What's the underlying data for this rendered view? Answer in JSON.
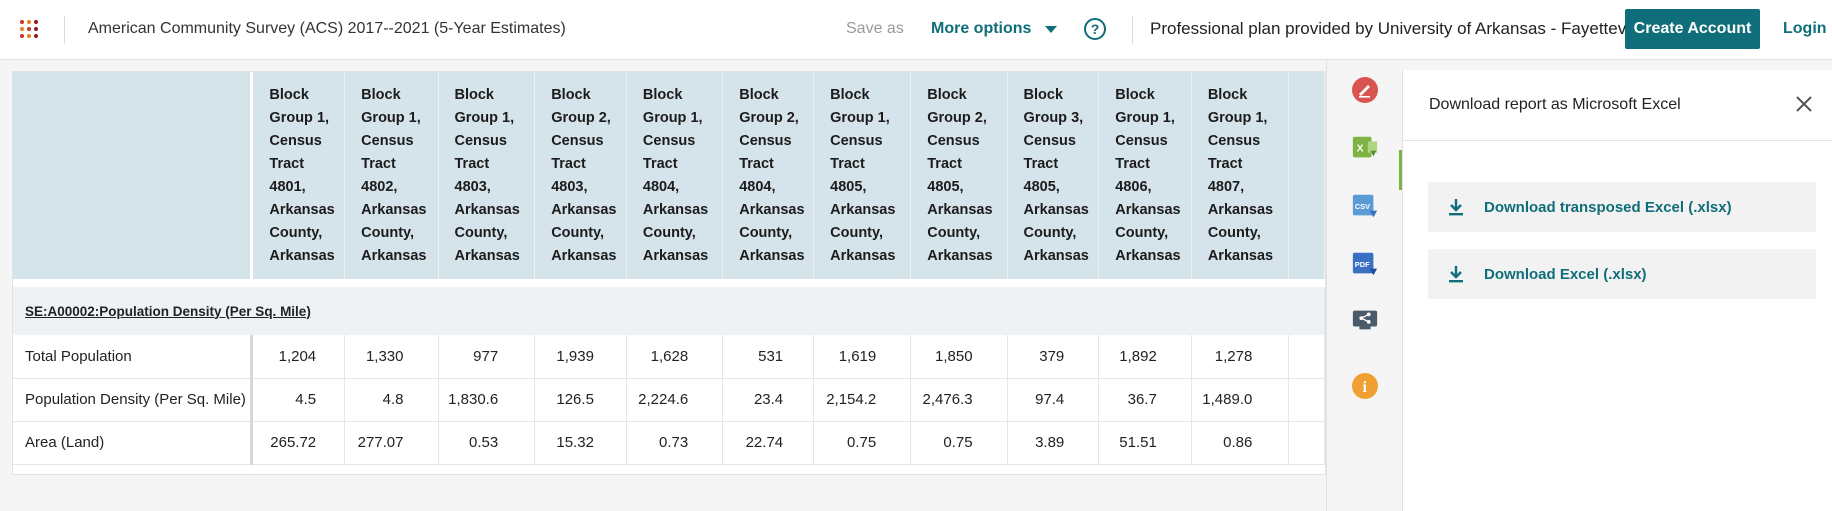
{
  "header": {
    "survey_title": "American Community Survey (ACS) 2017--2021 (5-Year Estimates)",
    "save_as": "Save as",
    "more_options": "More options",
    "help_label": "?",
    "plan_text": "Professional plan provided by University of Arkansas - Fayetteville",
    "create_account": "Create Account",
    "login": "Login"
  },
  "table": {
    "columns": [
      [
        "Block",
        "Group 1,",
        "Census",
        "Tract",
        "4801,",
        "Arkansas",
        "County,",
        "Arkansas"
      ],
      [
        "Block",
        "Group 1,",
        "Census",
        "Tract",
        "4802,",
        "Arkansas",
        "County,",
        "Arkansas"
      ],
      [
        "Block",
        "Group 1,",
        "Census",
        "Tract",
        "4803,",
        "Arkansas",
        "County,",
        "Arkansas"
      ],
      [
        "Block",
        "Group 2,",
        "Census",
        "Tract",
        "4803,",
        "Arkansas",
        "County,",
        "Arkansas"
      ],
      [
        "Block",
        "Group 1,",
        "Census",
        "Tract",
        "4804,",
        "Arkansas",
        "County,",
        "Arkansas"
      ],
      [
        "Block",
        "Group 2,",
        "Census",
        "Tract",
        "4804,",
        "Arkansas",
        "County,",
        "Arkansas"
      ],
      [
        "Block",
        "Group 1,",
        "Census",
        "Tract",
        "4805,",
        "Arkansas",
        "County,",
        "Arkansas"
      ],
      [
        "Block",
        "Group 2,",
        "Census",
        "Tract",
        "4805,",
        "Arkansas",
        "County,",
        "Arkansas"
      ],
      [
        "Block",
        "Group 3,",
        "Census",
        "Tract",
        "4805,",
        "Arkansas",
        "County,",
        "Arkansas"
      ],
      [
        "Block",
        "Group 1,",
        "Census",
        "Tract",
        "4806,",
        "Arkansas",
        "County,",
        "Arkansas"
      ],
      [
        "Block",
        "Group 1,",
        "Census",
        "Tract",
        "4807,",
        "Arkansas",
        "County,",
        "Arkansas"
      ]
    ],
    "section_label": "SE:A00002:Population Density (Per Sq. Mile)",
    "rows": [
      {
        "label": "Total Population",
        "values": [
          "1,204",
          "1,330",
          "977",
          "1,939",
          "1,628",
          "531",
          "1,619",
          "1,850",
          "379",
          "1,892",
          "1,278"
        ]
      },
      {
        "label": "Population Density (Per Sq. Mile)",
        "values": [
          "4.5",
          "4.8",
          "1,830.6",
          "126.5",
          "2,224.6",
          "23.4",
          "2,154.2",
          "2,476.3",
          "97.4",
          "36.7",
          "1,489.0"
        ]
      },
      {
        "label": "Area (Land)",
        "values": [
          "265.72",
          "277.07",
          "0.53",
          "15.32",
          "0.73",
          "22.74",
          "0.75",
          "0.75",
          "3.89",
          "51.51",
          "0.86"
        ]
      }
    ]
  },
  "side_icons": [
    "edit-icon",
    "excel-icon",
    "csv-icon",
    "pdf-icon",
    "share-icon",
    "info-icon"
  ],
  "side_icon_labels": {
    "csv": "CSV",
    "pdf": "PDF",
    "info": "i"
  },
  "panel": {
    "title": "Download report as Microsoft Excel",
    "buttons": [
      {
        "label": "Download transposed Excel (.xlsx)"
      },
      {
        "label": "Download Excel (.xlsx)"
      }
    ]
  },
  "colors": {
    "accent": "#0f6e79",
    "header_bg": "#d5e3ea",
    "excel_green": "#7cb342",
    "edit_red": "#d9534f",
    "info_orange": "#f0a030",
    "csv_blue": "#5b9bd5",
    "pdf_blue": "#3a6fc4"
  }
}
